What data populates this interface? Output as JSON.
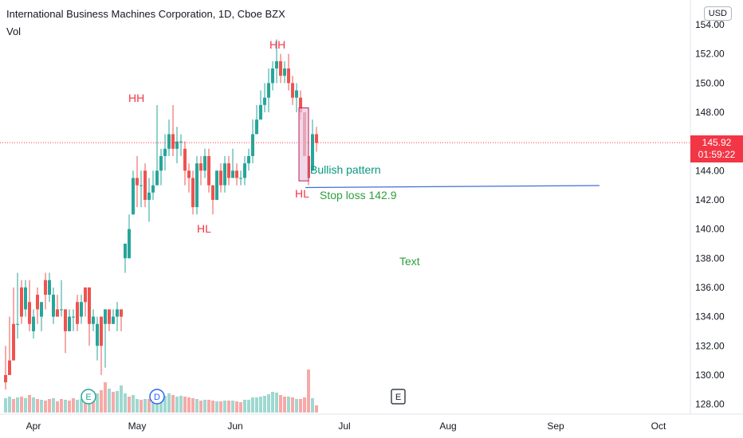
{
  "header": {
    "title": "International Business Machines Corporation, 1D, Cboe BZX",
    "volume_label": "Vol",
    "currency_button": "USD"
  },
  "last_price": {
    "value": "145.92",
    "countdown": "01:59:22",
    "color": "#f23645"
  },
  "colors": {
    "up": "#26a69a",
    "down": "#ef5350",
    "vol_up": "#9fd8d0",
    "vol_down": "#f7a9a7",
    "stoploss_line": "#3f6fd8"
  },
  "annotations": {
    "hh1": "HH",
    "hh2": "HH",
    "hl1": "HL",
    "hl2": "HL",
    "bullish": "Bullish pattern",
    "stop_loss": "Stop loss 142.9",
    "text": "Text"
  },
  "events": {
    "earnings": "E",
    "dividend": "D",
    "earnings_future": "E"
  },
  "chart_data": {
    "type": "candlestick",
    "y_ticks": [
      "154.00",
      "152.00",
      "150.00",
      "148.00",
      "146.00",
      "144.00",
      "142.00",
      "140.00",
      "138.00",
      "136.00",
      "134.00",
      "132.00",
      "130.00",
      "128.00"
    ],
    "ylim": [
      127.5,
      155
    ],
    "x_ticks": [
      "Apr",
      "May",
      "Jun",
      "Jul",
      "Aug",
      "Sep",
      "Oct"
    ],
    "stop_loss": 142.9,
    "candles": [
      [
        130.0,
        129.5,
        132.0,
        129.0
      ],
      [
        131.0,
        130.0,
        134.0,
        130.0
      ],
      [
        133.5,
        131.0,
        136.0,
        133.0
      ],
      [
        133.5,
        133.5,
        137.0,
        132.5
      ],
      [
        136.0,
        134.0,
        136.5,
        133.5
      ],
      [
        134.5,
        136.0,
        136.5,
        134.0
      ],
      [
        135.0,
        133.5,
        136.5,
        133.0
      ],
      [
        133.0,
        134.0,
        134.5,
        132.5
      ],
      [
        135.5,
        134.5,
        136.0,
        133.5
      ],
      [
        134.0,
        135.0,
        135.0,
        133.0
      ],
      [
        136.5,
        135.5,
        137.0,
        134.5
      ],
      [
        135.5,
        136.5,
        137.0,
        135.0
      ],
      [
        134.0,
        135.5,
        136.0,
        133.5
      ],
      [
        134.5,
        134.0,
        135.5,
        134.0
      ],
      [
        134.5,
        134.5,
        136.5,
        134.0
      ],
      [
        134.5,
        133.0,
        134.5,
        131.5
      ],
      [
        133.0,
        134.0,
        134.5,
        133.5
      ],
      [
        134.0,
        134.0,
        134.5,
        133.0
      ],
      [
        135.0,
        133.5,
        135.5,
        133.0
      ],
      [
        134.0,
        135.0,
        135.5,
        133.5
      ],
      [
        136.0,
        135.0,
        136.0,
        134.0
      ],
      [
        136.0,
        133.5,
        136.0,
        132.0
      ],
      [
        133.5,
        134.0,
        134.5,
        133.0
      ],
      [
        132.0,
        133.5,
        134.0,
        131.0
      ],
      [
        134.0,
        132.0,
        134.0,
        130.0
      ],
      [
        133.5,
        134.5,
        134.5,
        130.5
      ],
      [
        134.5,
        133.5,
        134.0,
        133.0
      ],
      [
        133.5,
        134.0,
        134.5,
        133.5
      ],
      [
        134.0,
        134.5,
        135.0,
        133.0
      ],
      [
        134.5,
        134.0,
        134.5,
        133.0
      ],
      [
        138.0,
        139.0,
        139.0,
        137.0
      ],
      [
        138.0,
        140.0,
        141.0,
        138.0
      ],
      [
        141.0,
        143.5,
        144.0,
        141.0
      ],
      [
        143.5,
        143.0,
        145.0,
        141.5
      ],
      [
        143.0,
        143.0,
        144.0,
        141.5
      ],
      [
        144.0,
        142.0,
        144.5,
        141.5
      ],
      [
        142.0,
        142.5,
        143.5,
        140.5
      ],
      [
        142.5,
        143.0,
        144.0,
        142.0
      ],
      [
        143.0,
        144.0,
        148.5,
        143.5
      ],
      [
        144.0,
        145.0,
        145.5,
        143.0
      ],
      [
        145.0,
        145.5,
        146.5,
        144.0
      ],
      [
        145.5,
        146.5,
        147.5,
        145.0
      ],
      [
        146.5,
        145.5,
        148.5,
        145.0
      ],
      [
        145.5,
        146.0,
        147.0,
        144.5
      ],
      [
        146.0,
        146.0,
        146.5,
        145.0
      ],
      [
        145.5,
        144.0,
        146.0,
        143.0
      ],
      [
        144.0,
        143.5,
        144.5,
        142.5
      ],
      [
        143.5,
        141.5,
        144.0,
        141.0
      ],
      [
        141.5,
        144.5,
        145.0,
        141.0
      ],
      [
        144.5,
        144.0,
        145.0,
        143.0
      ],
      [
        144.0,
        145.0,
        145.5,
        143.5
      ],
      [
        145.0,
        143.0,
        145.5,
        142.5
      ],
      [
        143.0,
        142.0,
        143.0,
        141.0
      ],
      [
        142.0,
        144.0,
        144.0,
        142.0
      ],
      [
        144.0,
        143.0,
        144.5,
        142.5
      ],
      [
        143.0,
        144.5,
        145.0,
        142.5
      ],
      [
        144.5,
        143.5,
        145.0,
        143.0
      ],
      [
        143.5,
        144.0,
        145.5,
        143.5
      ],
      [
        144.0,
        143.5,
        144.5,
        143.0
      ],
      [
        143.5,
        143.5,
        144.0,
        143.0
      ],
      [
        143.5,
        144.5,
        145.0,
        143.0
      ],
      [
        144.5,
        145.0,
        145.5,
        144.0
      ],
      [
        145.0,
        146.5,
        147.5,
        144.5
      ],
      [
        146.5,
        147.5,
        148.5,
        146.5
      ],
      [
        147.5,
        148.5,
        149.5,
        147.5
      ],
      [
        148.5,
        149.0,
        150.0,
        148.0
      ],
      [
        149.0,
        150.0,
        151.0,
        148.0
      ],
      [
        150.0,
        151.0,
        151.5,
        149.5
      ],
      [
        151.0,
        151.5,
        153.0,
        150.0
      ],
      [
        151.5,
        150.5,
        152.0,
        150.0
      ],
      [
        150.5,
        151.0,
        151.5,
        150.0
      ],
      [
        151.0,
        150.0,
        152.0,
        149.5
      ],
      [
        150.0,
        149.0,
        150.5,
        148.5
      ],
      [
        149.0,
        149.5,
        150.0,
        148.0
      ],
      [
        149.0,
        148.0,
        149.5,
        147.5
      ],
      [
        148.0,
        145.0,
        148.0,
        145.0
      ],
      [
        145.0,
        143.5,
        146.0,
        143.0
      ],
      [
        144.0,
        146.5,
        147.5,
        144.0
      ],
      [
        146.5,
        145.9,
        147.0,
        145.3
      ]
    ],
    "volumes": [
      [
        18,
        1
      ],
      [
        20,
        1
      ],
      [
        17,
        0
      ],
      [
        19,
        1
      ],
      [
        20,
        0
      ],
      [
        18,
        1
      ],
      [
        22,
        0
      ],
      [
        19,
        1
      ],
      [
        17,
        0
      ],
      [
        16,
        1
      ],
      [
        15,
        0
      ],
      [
        17,
        0
      ],
      [
        18,
        1
      ],
      [
        14,
        0
      ],
      [
        17,
        0
      ],
      [
        16,
        1
      ],
      [
        15,
        0
      ],
      [
        18,
        0
      ],
      [
        16,
        1
      ],
      [
        17,
        1
      ],
      [
        14,
        0
      ],
      [
        20,
        1
      ],
      [
        26,
        0
      ],
      [
        24,
        1
      ],
      [
        28,
        0
      ],
      [
        38,
        0
      ],
      [
        30,
        1
      ],
      [
        26,
        0
      ],
      [
        27,
        1
      ],
      [
        34,
        1
      ],
      [
        24,
        1
      ],
      [
        20,
        0
      ],
      [
        22,
        1
      ],
      [
        17,
        1
      ],
      [
        16,
        0
      ],
      [
        17,
        1
      ],
      [
        17,
        0
      ],
      [
        17,
        1
      ],
      [
        18,
        1
      ],
      [
        19,
        1
      ],
      [
        21,
        1
      ],
      [
        24,
        1
      ],
      [
        22,
        0
      ],
      [
        20,
        1
      ],
      [
        21,
        1
      ],
      [
        20,
        0
      ],
      [
        19,
        0
      ],
      [
        18,
        0
      ],
      [
        17,
        1
      ],
      [
        15,
        0
      ],
      [
        16,
        1
      ],
      [
        16,
        0
      ],
      [
        15,
        0
      ],
      [
        14,
        1
      ],
      [
        14,
        0
      ],
      [
        15,
        1
      ],
      [
        15,
        0
      ],
      [
        15,
        1
      ],
      [
        14,
        0
      ],
      [
        13,
        0
      ],
      [
        16,
        1
      ],
      [
        16,
        1
      ],
      [
        19,
        1
      ],
      [
        19,
        1
      ],
      [
        20,
        1
      ],
      [
        21,
        1
      ],
      [
        23,
        1
      ],
      [
        26,
        1
      ],
      [
        25,
        1
      ],
      [
        22,
        0
      ],
      [
        20,
        0
      ],
      [
        20,
        1
      ],
      [
        19,
        0
      ],
      [
        17,
        1
      ],
      [
        17,
        0
      ],
      [
        19,
        0
      ],
      [
        54,
        0
      ],
      [
        18,
        1
      ],
      [
        9,
        0
      ]
    ]
  }
}
